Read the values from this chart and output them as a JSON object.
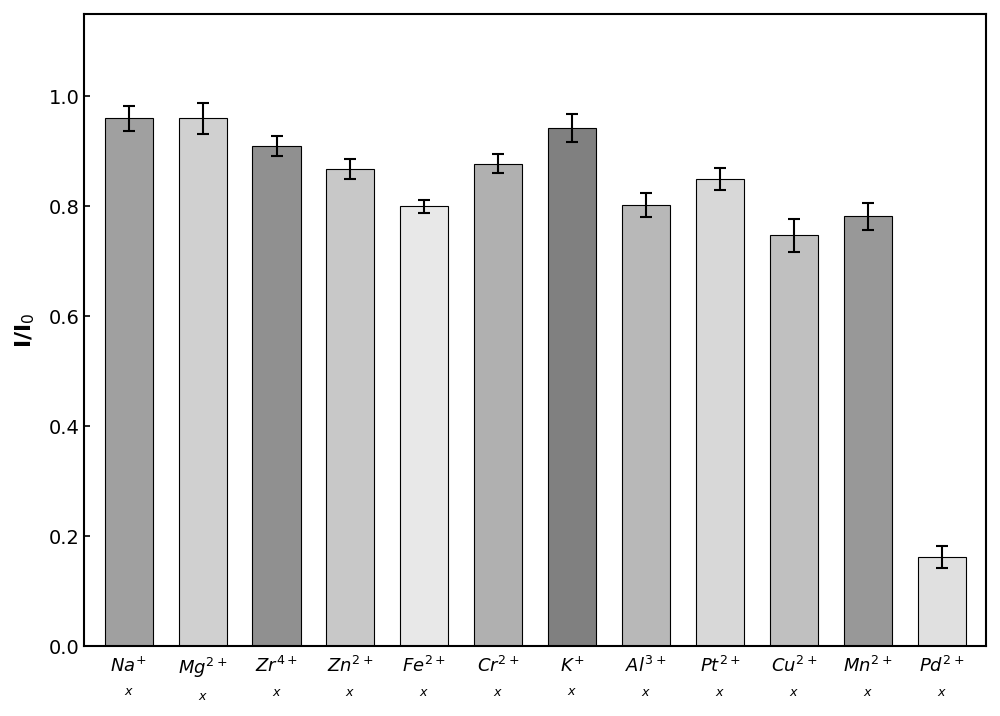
{
  "categories": [
    "Na",
    "Mg",
    "Zr",
    "Zn",
    "Fe",
    "Cr",
    "K",
    "Al",
    "Pt",
    "Cu",
    "Mn",
    "Pd"
  ],
  "superscripts": [
    "+",
    "2+",
    "4+",
    "2+",
    "2+",
    "2+",
    "+",
    "3+",
    "2+",
    "2+",
    "2+",
    "2+"
  ],
  "values": [
    0.96,
    0.96,
    0.91,
    0.868,
    0.8,
    0.878,
    0.943,
    0.802,
    0.85,
    0.748,
    0.782,
    0.162
  ],
  "errors": [
    0.022,
    0.028,
    0.018,
    0.018,
    0.012,
    0.018,
    0.025,
    0.022,
    0.02,
    0.03,
    0.025,
    0.02
  ],
  "bar_colors": [
    "#a0a0a0",
    "#d0d0d0",
    "#909090",
    "#c8c8c8",
    "#e8e8e8",
    "#b0b0b0",
    "#808080",
    "#b8b8b8",
    "#d8d8d8",
    "#c0c0c0",
    "#989898",
    "#e0e0e0"
  ],
  "ylabel": "I/I$_0$",
  "ylim": [
    0.0,
    1.15
  ],
  "yticks": [
    0.0,
    0.2,
    0.4,
    0.6,
    0.8,
    1.0
  ],
  "background_color": "#ffffff",
  "bar_edge_color": "#000000",
  "error_color": "#000000",
  "figure_width": 10.0,
  "figure_height": 7.16
}
